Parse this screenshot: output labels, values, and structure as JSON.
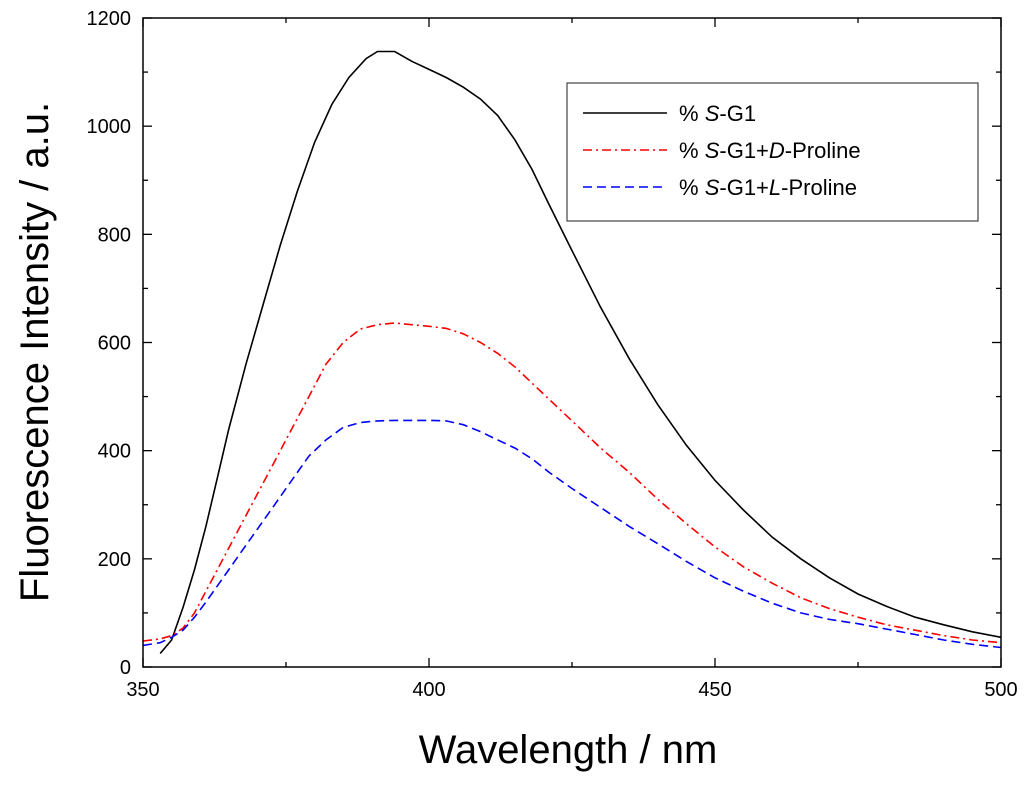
{
  "chart_data": {
    "type": "line",
    "title": "",
    "xlabel": "Wavelength / nm",
    "ylabel": "Fluorescence Intensity / a.u.",
    "xlim": [
      350,
      500
    ],
    "ylim": [
      0,
      1200
    ],
    "x_ticks": [
      350,
      400,
      450,
      500
    ],
    "x_minor_step": 25,
    "y_ticks": [
      0,
      200,
      400,
      600,
      800,
      1000,
      1200
    ],
    "y_minor_step": 100,
    "grid": false,
    "legend_position": "top-right",
    "series": [
      {
        "name": "% S-G1",
        "legend_parts": [
          {
            "text": "% ",
            "italic": false
          },
          {
            "text": "S",
            "italic": true
          },
          {
            "text": "-G1",
            "italic": false
          }
        ],
        "color": "#000000",
        "dash": "solid",
        "points": [
          [
            353,
            25
          ],
          [
            355,
            50
          ],
          [
            357,
            110
          ],
          [
            359,
            180
          ],
          [
            361,
            260
          ],
          [
            363,
            350
          ],
          [
            365,
            440
          ],
          [
            368,
            560
          ],
          [
            371,
            670
          ],
          [
            374,
            780
          ],
          [
            377,
            880
          ],
          [
            380,
            970
          ],
          [
            383,
            1040
          ],
          [
            386,
            1090
          ],
          [
            389,
            1125
          ],
          [
            391,
            1138
          ],
          [
            394,
            1138
          ],
          [
            397,
            1120
          ],
          [
            400,
            1105
          ],
          [
            403,
            1090
          ],
          [
            406,
            1072
          ],
          [
            409,
            1050
          ],
          [
            412,
            1020
          ],
          [
            415,
            975
          ],
          [
            418,
            920
          ],
          [
            421,
            855
          ],
          [
            425,
            770
          ],
          [
            430,
            665
          ],
          [
            435,
            570
          ],
          [
            440,
            485
          ],
          [
            445,
            410
          ],
          [
            450,
            345
          ],
          [
            455,
            290
          ],
          [
            460,
            240
          ],
          [
            465,
            200
          ],
          [
            470,
            165
          ],
          [
            475,
            135
          ],
          [
            480,
            112
          ],
          [
            485,
            92
          ],
          [
            490,
            78
          ],
          [
            495,
            65
          ],
          [
            500,
            55
          ]
        ]
      },
      {
        "name": "% S-G1+D-Proline",
        "legend_parts": [
          {
            "text": "% ",
            "italic": false
          },
          {
            "text": "S",
            "italic": true
          },
          {
            "text": "-G1+",
            "italic": false
          },
          {
            "text": "D",
            "italic": true
          },
          {
            "text": "-Proline",
            "italic": false
          }
        ],
        "color": "#ff0000",
        "dash": "dashdot",
        "points": [
          [
            350,
            48
          ],
          [
            353,
            52
          ],
          [
            355,
            58
          ],
          [
            357,
            72
          ],
          [
            359,
            100
          ],
          [
            361,
            140
          ],
          [
            364,
            200
          ],
          [
            367,
            260
          ],
          [
            370,
            320
          ],
          [
            373,
            380
          ],
          [
            376,
            440
          ],
          [
            379,
            500
          ],
          [
            382,
            560
          ],
          [
            385,
            600
          ],
          [
            388,
            625
          ],
          [
            391,
            633
          ],
          [
            394,
            636
          ],
          [
            397,
            633
          ],
          [
            400,
            630
          ],
          [
            403,
            626
          ],
          [
            406,
            616
          ],
          [
            409,
            600
          ],
          [
            412,
            580
          ],
          [
            415,
            555
          ],
          [
            418,
            525
          ],
          [
            421,
            495
          ],
          [
            425,
            455
          ],
          [
            430,
            405
          ],
          [
            435,
            360
          ],
          [
            440,
            310
          ],
          [
            445,
            265
          ],
          [
            450,
            222
          ],
          [
            455,
            185
          ],
          [
            460,
            155
          ],
          [
            465,
            128
          ],
          [
            470,
            108
          ],
          [
            475,
            92
          ],
          [
            480,
            78
          ],
          [
            485,
            68
          ],
          [
            490,
            58
          ],
          [
            495,
            50
          ],
          [
            500,
            45
          ]
        ]
      },
      {
        "name": "% S-G1+L-Proline",
        "legend_parts": [
          {
            "text": "% ",
            "italic": false
          },
          {
            "text": "S",
            "italic": true
          },
          {
            "text": "-G1+",
            "italic": false
          },
          {
            "text": "L",
            "italic": true
          },
          {
            "text": "-Proline",
            "italic": false
          }
        ],
        "color": "#0000ff",
        "dash": "dashed",
        "points": [
          [
            350,
            40
          ],
          [
            353,
            45
          ],
          [
            355,
            55
          ],
          [
            357,
            68
          ],
          [
            359,
            92
          ],
          [
            361,
            120
          ],
          [
            364,
            165
          ],
          [
            367,
            210
          ],
          [
            370,
            255
          ],
          [
            373,
            300
          ],
          [
            376,
            345
          ],
          [
            379,
            390
          ],
          [
            382,
            420
          ],
          [
            385,
            443
          ],
          [
            388,
            452
          ],
          [
            391,
            455
          ],
          [
            394,
            456
          ],
          [
            397,
            456
          ],
          [
            400,
            456
          ],
          [
            403,
            455
          ],
          [
            406,
            448
          ],
          [
            409,
            435
          ],
          [
            412,
            420
          ],
          [
            415,
            405
          ],
          [
            418,
            385
          ],
          [
            421,
            360
          ],
          [
            425,
            330
          ],
          [
            430,
            295
          ],
          [
            435,
            260
          ],
          [
            440,
            228
          ],
          [
            445,
            195
          ],
          [
            450,
            165
          ],
          [
            455,
            140
          ],
          [
            460,
            118
          ],
          [
            465,
            100
          ],
          [
            470,
            88
          ],
          [
            475,
            80
          ],
          [
            480,
            70
          ],
          [
            485,
            60
          ],
          [
            490,
            50
          ],
          [
            495,
            42
          ],
          [
            500,
            36
          ]
        ]
      }
    ]
  }
}
